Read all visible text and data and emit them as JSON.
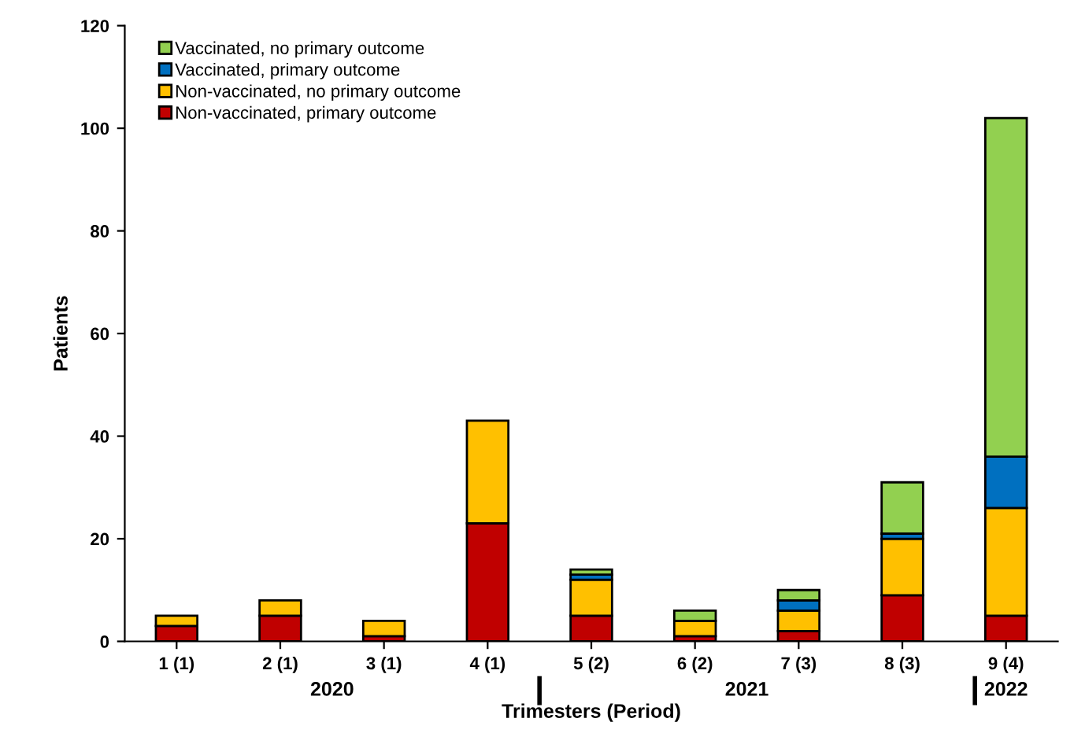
{
  "chart_data": {
    "type": "bar",
    "stacked": true,
    "xlabel": "Trimesters (Period)",
    "ylabel": "Patients",
    "categories": [
      "1 (1)",
      "2 (1)",
      "3 (1)",
      "4 (1)",
      "5 (2)",
      "6 (2)",
      "7 (3)",
      "8 (3)",
      "9 (4)"
    ],
    "series": [
      {
        "name": "Non-vaccinated, primary outcome",
        "color": "#c00000",
        "values": [
          3,
          5,
          1,
          23,
          5,
          1,
          2,
          9,
          5
        ]
      },
      {
        "name": "Non-vaccinated, no primary outcome",
        "color": "#ffc000",
        "values": [
          2,
          3,
          3,
          20,
          7,
          3,
          4,
          11,
          21
        ]
      },
      {
        "name": "Vaccinated, primary outcome",
        "color": "#0070c0",
        "values": [
          null,
          null,
          null,
          null,
          1,
          null,
          2,
          1,
          10
        ]
      },
      {
        "name": "Vaccinated, no primary outcome",
        "color": "#92d050",
        "values": [
          null,
          null,
          null,
          null,
          1,
          2,
          2,
          10,
          66
        ]
      }
    ],
    "ylim": [
      0,
      120
    ],
    "yticks": [
      0,
      20,
      40,
      60,
      80,
      100,
      120
    ],
    "grid": false,
    "legend": "top left",
    "annotations": [
      "2020",
      "2021",
      "2022"
    ]
  }
}
